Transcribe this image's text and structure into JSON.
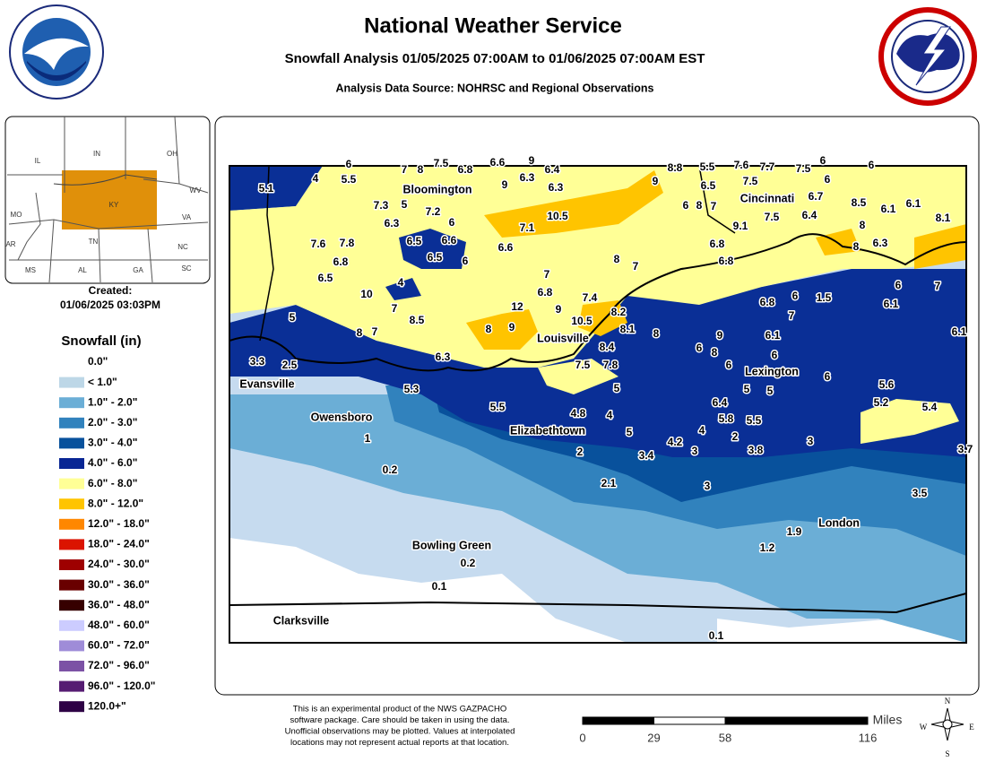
{
  "header": {
    "title": "National Weather Service",
    "subtitle": "Snowfall Analysis 01/05/2025 07:00AM to 01/06/2025 07:00AM EST",
    "source": "Analysis Data Source: NOHRSC and Regional Observations"
  },
  "inset": {
    "labels": [
      "IL",
      "IN",
      "OH",
      "WV",
      "MO",
      "KY",
      "VA",
      "TN",
      "NC",
      "AR",
      "MS",
      "AL",
      "GA",
      "SC"
    ],
    "created_label": "Created:",
    "created_time": "01/06/2025 03:03PM"
  },
  "legend": {
    "title": "Snowfall (in)",
    "items": [
      {
        "label": "0.0\"",
        "color": "#ffffff"
      },
      {
        "label": "< 1.0\"",
        "color": "#bdd7e7"
      },
      {
        "label": "1.0\" - 2.0\"",
        "color": "#6baed6"
      },
      {
        "label": "2.0\" - 3.0\"",
        "color": "#3182bd"
      },
      {
        "label": "3.0\" - 4.0\"",
        "color": "#08519c"
      },
      {
        "label": "4.0\" - 6.0\"",
        "color": "#082694"
      },
      {
        "label": "6.0\" - 8.0\"",
        "color": "#ffff96"
      },
      {
        "label": "8.0\" - 12.0\"",
        "color": "#ffc400"
      },
      {
        "label": "12.0\" - 18.0\"",
        "color": "#ff8700"
      },
      {
        "label": "18.0\" - 24.0\"",
        "color": "#db1400"
      },
      {
        "label": "24.0\" - 30.0\"",
        "color": "#9e0000"
      },
      {
        "label": "30.0\" - 36.0\"",
        "color": "#690000"
      },
      {
        "label": "36.0\" - 48.0\"",
        "color": "#360000"
      },
      {
        "label": "48.0\" - 60.0\"",
        "color": "#ccccff"
      },
      {
        "label": "60.0\" - 72.0\"",
        "color": "#9f8cd8"
      },
      {
        "label": "72.0\" - 96.0\"",
        "color": "#7c52a5"
      },
      {
        "label": "96.0\" - 120.0\"",
        "color": "#561c72"
      },
      {
        "label": "120.0+\"",
        "color": "#2e0145"
      }
    ]
  },
  "map": {
    "cities": [
      "Bloomington",
      "Cincinnati",
      "Louisville",
      "Lexington",
      "Evansville",
      "Owensboro",
      "Elizabethtown",
      "London",
      "Bowling Green",
      "Clarksville"
    ],
    "observations": [
      6,
      4,
      5.5,
      5.1,
      7,
      8,
      7.5,
      6.8,
      6.6,
      9,
      6.4,
      6.3,
      9,
      6.3,
      9,
      8.8,
      5.5,
      7.6,
      7.7,
      7.5,
      6,
      6,
      6,
      6.5,
      7.5,
      6.7,
      8.5,
      6.1,
      6.1,
      8.1,
      7.3,
      5,
      7.2,
      6.3,
      6,
      10.5,
      7.1,
      6,
      8,
      7,
      9.1,
      7.5,
      6.4,
      8,
      8,
      6.3,
      6.5,
      6.6,
      6.6,
      7.6,
      7.8,
      6.8,
      6.5,
      6,
      6.8,
      6.8,
      8,
      7,
      6.5,
      7,
      4,
      10,
      6.8,
      7.4,
      6,
      7,
      6,
      1.5,
      6.8,
      6.1,
      5,
      7,
      12,
      9,
      8.2,
      7,
      10.5,
      8.5,
      8,
      9,
      8.1,
      8,
      8,
      7,
      9,
      6.1,
      6.1,
      8.4,
      6,
      8,
      6,
      3.3,
      2.5,
      6.3,
      7.5,
      7.8,
      6,
      6,
      5.6,
      5,
      5,
      5,
      5.3,
      6.4,
      5.2,
      5.4,
      5.5,
      4.8,
      4,
      5.8,
      5.5,
      4,
      5,
      2,
      3,
      4.2,
      1,
      2,
      3.4,
      3,
      3.8,
      3.7,
      0.2,
      2.1,
      3,
      3.5,
      1.9,
      1.2,
      0.2,
      0.1,
      0.1
    ]
  },
  "footer": {
    "disclaimer": [
      "This is an experimental product of the NWS GAZPACHO",
      "software package. Care should be taken in using the data.",
      "Unofficial observations may be plotted. Values at interpolated",
      "locations may not represent actual reports at that location."
    ],
    "scale": {
      "ticks": [
        0,
        29,
        58,
        116
      ],
      "unit": "Miles"
    },
    "compass": [
      "N",
      "E",
      "S",
      "W"
    ]
  }
}
